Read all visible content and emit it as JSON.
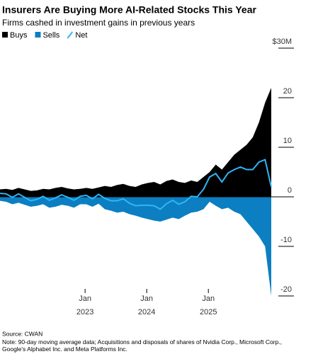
{
  "chart_data": {
    "type": "area",
    "title": "Insurers Are Buying More AI-Related Stocks This Year",
    "subtitle": "Firms cashed in investment gains in previous years",
    "x": [
      2021.62,
      2021.72,
      2021.82,
      2021.92,
      2022.02,
      2022.12,
      2022.22,
      2022.32,
      2022.42,
      2022.52,
      2022.62,
      2022.72,
      2022.82,
      2022.92,
      2023.02,
      2023.12,
      2023.22,
      2023.32,
      2023.42,
      2023.52,
      2023.62,
      2023.72,
      2023.82,
      2023.92,
      2024.02,
      2024.12,
      2024.22,
      2024.32,
      2024.42,
      2024.52,
      2024.62,
      2024.72,
      2024.82,
      2024.92,
      2025.02,
      2025.12,
      2025.22,
      2025.32,
      2025.42,
      2025.52,
      2025.62,
      2025.72,
      2025.82,
      2025.92,
      2026.02
    ],
    "series": [
      {
        "name": "Buys",
        "color": "#000000",
        "kind": "area",
        "values": [
          1.5,
          1.6,
          1.4,
          1.8,
          1.5,
          1.2,
          1.3,
          1.6,
          1.5,
          1.8,
          2.0,
          1.7,
          1.5,
          1.6,
          1.8,
          1.6,
          1.9,
          2.2,
          2.0,
          2.4,
          2.6,
          2.2,
          2.0,
          2.5,
          2.8,
          3.0,
          2.5,
          3.2,
          3.5,
          3.0,
          2.8,
          3.3,
          3.0,
          4.0,
          5.0,
          6.5,
          5.5,
          7.0,
          8.5,
          9.5,
          10.5,
          12.0,
          15.0,
          19.0,
          22.0
        ]
      },
      {
        "name": "Sells",
        "color": "#0b7fc1",
        "kind": "area",
        "values": [
          -0.8,
          -1.0,
          -1.5,
          -1.2,
          -1.6,
          -2.0,
          -1.8,
          -1.5,
          -2.2,
          -2.0,
          -1.6,
          -1.8,
          -2.2,
          -1.5,
          -1.5,
          -2.0,
          -1.4,
          -2.5,
          -2.8,
          -3.2,
          -3.0,
          -3.5,
          -3.8,
          -4.2,
          -4.5,
          -4.8,
          -5.0,
          -4.6,
          -4.2,
          -4.5,
          -3.8,
          -3.2,
          -3.0,
          -2.5,
          -1.0,
          -1.8,
          -2.5,
          -2.2,
          -3.0,
          -3.5,
          -5.0,
          -6.5,
          -8.0,
          -10.0,
          -20.0
        ]
      },
      {
        "name": "Net",
        "color": "#2fb6f5",
        "kind": "line",
        "values": [
          0.7,
          0.6,
          -0.1,
          0.6,
          -0.1,
          -0.8,
          -0.5,
          0.1,
          -0.7,
          -0.2,
          0.4,
          -0.1,
          -0.7,
          0.1,
          0.3,
          -0.4,
          0.5,
          -0.3,
          -0.8,
          -0.8,
          -0.4,
          -1.3,
          -1.8,
          -1.7,
          -1.7,
          -1.8,
          -2.5,
          -1.4,
          -0.7,
          -1.5,
          -1.0,
          0.1,
          0.0,
          1.5,
          4.0,
          4.7,
          3.0,
          4.8,
          5.5,
          6.0,
          5.5,
          5.5,
          7.0,
          7.5,
          2.0
        ]
      }
    ],
    "xlim": [
      2021.62,
      2026.02
    ],
    "xticks": [
      {
        "value": 2023,
        "label": "Jan"
      },
      {
        "value": 2024,
        "label": "Jan"
      },
      {
        "value": 2025,
        "label": "Jan"
      }
    ],
    "xtick_years": [
      "2023",
      "2024",
      "2025"
    ],
    "ylim": [
      -22,
      30
    ],
    "yticks": [
      {
        "value": 30,
        "label": "$30M"
      },
      20,
      10,
      0,
      -10,
      -20
    ],
    "source": "Source: CWAN",
    "note": "Note: 90-day moving average data; Acquisitions and disposals of shares of Nvidia Corp., Microsoft Corp., Google's Alphabet Inc. and Meta Platforms Inc."
  }
}
